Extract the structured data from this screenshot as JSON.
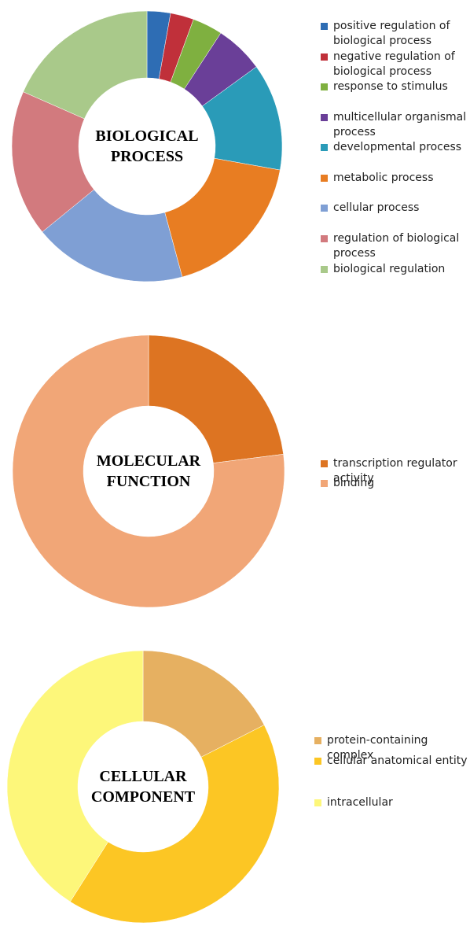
{
  "chart_data": [
    {
      "type": "donut",
      "title": "BIOLOGICAL PROCESS",
      "categories": [
        "positive regulation of biological process",
        "negative regulation of biological process",
        "response to stimulus",
        "multicellular organismal process",
        "developmental process",
        "metabolic process",
        "cellular process",
        "regulation of biological process",
        "biological regulation"
      ],
      "values": [
        2.8,
        2.8,
        3.6,
        5.8,
        12.8,
        18,
        18.3,
        17.5,
        18.4
      ],
      "colors": [
        "#2e6db4",
        "#c0303a",
        "#7fb040",
        "#6a3f98",
        "#2a9bb8",
        "#e87d22",
        "#7f9fd4",
        "#d27a7e",
        "#a9c98a"
      ]
    },
    {
      "type": "donut",
      "title": "MOLECULAR FUNCTION",
      "categories": [
        "transcription regulator activity",
        "binding"
      ],
      "values": [
        23,
        77
      ],
      "colors": [
        "#dd7422",
        "#f1a677"
      ]
    },
    {
      "type": "donut",
      "title": "CELLULAR COMPONENT",
      "categories": [
        "protein-containing complex",
        "cellular anatomical entity",
        "intracellular"
      ],
      "values": [
        17.5,
        41.5,
        41
      ],
      "colors": [
        "#e6b061",
        "#fcc624",
        "#fdf77a"
      ]
    }
  ]
}
